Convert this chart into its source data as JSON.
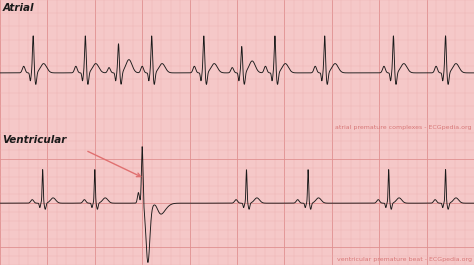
{
  "bg_color": "#f5c8c8",
  "grid_color_major": "#e09090",
  "grid_color_minor": "#edaeae",
  "ecg_color": "#1a1a1a",
  "label_color": "#1a1a1a",
  "watermark_color": "#d87878",
  "arrow_color": "#e07070",
  "atrial_label": "Atrial",
  "ventricular_label": "Ventricular",
  "atrial_watermark": "atrial premature complexes - ECGpedia.org",
  "ventricular_watermark": "ventricular premature beat - ECGpedia.org",
  "label_fontsize": 7.5,
  "watermark_fontsize": 4.5
}
